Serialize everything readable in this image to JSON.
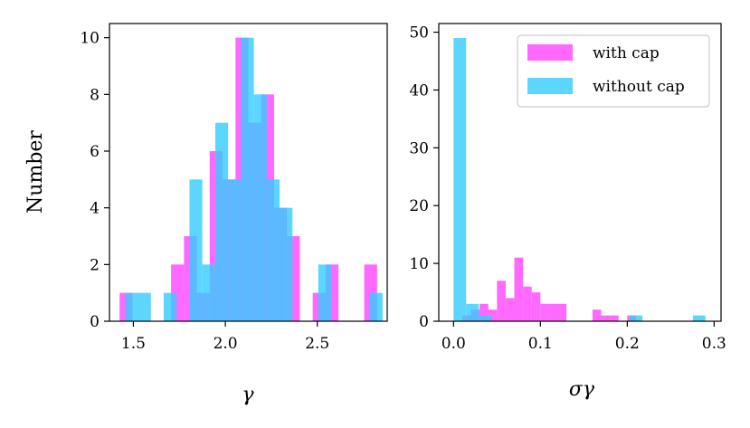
{
  "colors": {
    "with_cap": "#ff44ff",
    "without_cap": "#33ccff",
    "overlap": "#6b8cff"
  },
  "chart_data": [
    {
      "type": "bar",
      "subtype": "histogram",
      "xlabel": "γ",
      "ylabel": "Number",
      "xlim": [
        1.37,
        2.88
      ],
      "ylim": [
        0,
        10.5
      ],
      "xticks": [
        1.5,
        2.0,
        2.5
      ],
      "xtick_labels": [
        "1.5",
        "2.0",
        "2.5"
      ],
      "yticks": [
        0,
        2,
        4,
        6,
        8,
        10
      ],
      "ytick_labels": [
        "0",
        "2",
        "4",
        "6",
        "8",
        "10"
      ],
      "series": [
        {
          "name": "with cap",
          "bin_width": 0.07,
          "bin_starts": [
            1.425,
            1.495,
            1.565,
            1.635,
            1.705,
            1.775,
            1.845,
            1.915,
            1.985,
            2.055,
            2.125,
            2.195,
            2.265,
            2.335,
            2.405,
            2.475,
            2.545,
            2.615,
            2.685,
            2.755
          ],
          "values": [
            1,
            0,
            0,
            0,
            2,
            3,
            1,
            6,
            5,
            10,
            7,
            8,
            4,
            3,
            0,
            1,
            2,
            0,
            0,
            2
          ]
        },
        {
          "name": "without cap",
          "bin_width": 0.07,
          "bin_starts": [
            1.455,
            1.525,
            1.595,
            1.665,
            1.735,
            1.805,
            1.875,
            1.945,
            2.015,
            2.085,
            2.155,
            2.225,
            2.295,
            2.365,
            2.435,
            2.505,
            2.575,
            2.645,
            2.715,
            2.785
          ],
          "values": [
            1,
            1,
            0,
            1,
            0,
            5,
            2,
            7,
            5,
            10,
            8,
            5,
            4,
            0,
            0,
            2,
            0,
            0,
            0,
            1
          ]
        }
      ]
    },
    {
      "type": "bar",
      "subtype": "histogram",
      "xlabel": "σγ",
      "ylabel": "",
      "xlim": [
        -0.017,
        0.308
      ],
      "ylim": [
        0,
        51.5
      ],
      "xticks": [
        0.0,
        0.1,
        0.2,
        0.3
      ],
      "xtick_labels": [
        "0.0",
        "0.1",
        "0.2",
        "0.3"
      ],
      "yticks": [
        0,
        10,
        20,
        30,
        40,
        50
      ],
      "ytick_labels": [
        "0",
        "10",
        "20",
        "30",
        "40",
        "50"
      ],
      "legend": {
        "position": "upper right",
        "entries": [
          "with cap",
          "without cap"
        ]
      },
      "series": [
        {
          "name": "with cap",
          "bin_width": 0.01,
          "bin_starts": [
            0.01,
            0.02,
            0.03,
            0.04,
            0.05,
            0.06,
            0.07,
            0.08,
            0.09,
            0.1,
            0.11,
            0.12,
            0.13,
            0.14,
            0.15,
            0.16,
            0.17,
            0.18,
            0.19,
            0.2
          ],
          "values": [
            1,
            2,
            3,
            2,
            7,
            4,
            11,
            6,
            5,
            3,
            3,
            3,
            0,
            0,
            0,
            2,
            1,
            1,
            0,
            1
          ]
        },
        {
          "name": "without cap",
          "bin_width": 0.0145,
          "bin_starts": [
            0.0,
            0.0145,
            0.029,
            0.0435,
            0.058,
            0.0725,
            0.087,
            0.1015,
            0.116,
            0.1305,
            0.145,
            0.1595,
            0.174,
            0.1885,
            0.203,
            0.2175,
            0.232,
            0.2465,
            0.261,
            0.2755
          ],
          "values": [
            49,
            3,
            1,
            0,
            0,
            0,
            0,
            0,
            0,
            0,
            0,
            0,
            0,
            0,
            1,
            0,
            0,
            0,
            0,
            1
          ]
        }
      ]
    }
  ]
}
